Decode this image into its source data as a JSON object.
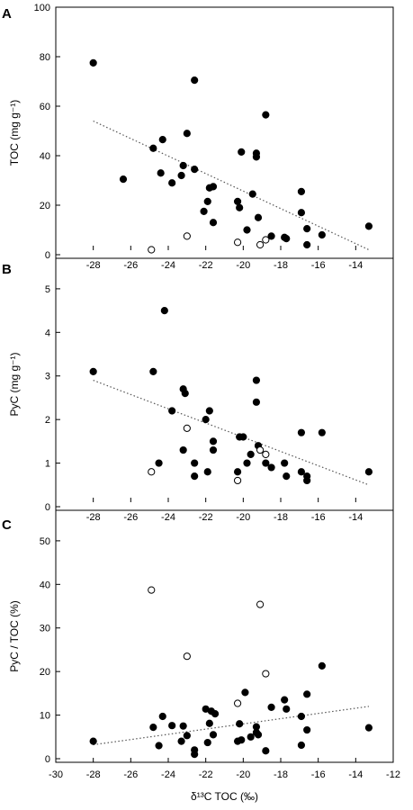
{
  "chart_data": [
    {
      "type": "scatter",
      "panel_label": "A",
      "ylabel": "TOC (mg g⁻¹)",
      "xlabel": "",
      "xlim": [
        -28,
        -13
      ],
      "ylim": [
        0,
        100
      ],
      "x_ticks": [
        -28,
        -26,
        -24,
        -22,
        -20,
        -18,
        -16,
        -14
      ],
      "y_ticks": [
        0,
        20,
        40,
        60,
        80,
        100
      ],
      "grid": false,
      "series": [
        {
          "marker": "filled-circle",
          "color": "#000000",
          "points": [
            [
              -28.0,
              77.5
            ],
            [
              -26.4,
              30.5
            ],
            [
              -24.8,
              43.0
            ],
            [
              -24.4,
              33.0
            ],
            [
              -24.3,
              46.5
            ],
            [
              -23.8,
              29.0
            ],
            [
              -23.3,
              32.0
            ],
            [
              -23.2,
              36.0
            ],
            [
              -23.0,
              49.0
            ],
            [
              -22.6,
              70.5
            ],
            [
              -22.6,
              34.5
            ],
            [
              -22.1,
              17.5
            ],
            [
              -21.9,
              21.5
            ],
            [
              -21.8,
              27.0
            ],
            [
              -21.6,
              27.5
            ],
            [
              -21.6,
              13.0
            ],
            [
              -20.3,
              21.5
            ],
            [
              -20.2,
              19.0
            ],
            [
              -20.1,
              41.5
            ],
            [
              -19.8,
              10.0
            ],
            [
              -19.5,
              24.5
            ],
            [
              -19.3,
              41.0
            ],
            [
              -19.3,
              39.5
            ],
            [
              -19.2,
              15.0
            ],
            [
              -18.8,
              56.5
            ],
            [
              -18.5,
              7.5
            ],
            [
              -17.8,
              7.0
            ],
            [
              -17.7,
              6.5
            ],
            [
              -16.9,
              25.5
            ],
            [
              -16.9,
              17.0
            ],
            [
              -16.6,
              10.5
            ],
            [
              -16.6,
              4.0
            ],
            [
              -15.8,
              8.0
            ],
            [
              -13.3,
              11.5
            ]
          ]
        },
        {
          "marker": "open-circle",
          "color": "#000000",
          "points": [
            [
              -24.9,
              2.0
            ],
            [
              -23.0,
              7.5
            ],
            [
              -20.3,
              5.0
            ],
            [
              -19.1,
              4.0
            ],
            [
              -18.8,
              6.0
            ]
          ]
        }
      ],
      "trendline": {
        "x": [
          -28.0,
          -13.3
        ],
        "y": [
          54.0,
          2.0
        ]
      }
    },
    {
      "type": "scatter",
      "panel_label": "B",
      "ylabel": "PyC (mg g⁻¹)",
      "xlabel": "",
      "xlim": [
        -28,
        -13
      ],
      "ylim": [
        0,
        5.7
      ],
      "x_ticks": [
        -28,
        -26,
        -24,
        -22,
        -20,
        -18,
        -16,
        -14
      ],
      "y_ticks": [
        0,
        1,
        2,
        3,
        4,
        5
      ],
      "grid": false,
      "series": [
        {
          "marker": "filled-circle",
          "color": "#000000",
          "points": [
            [
              -28.0,
              3.1
            ],
            [
              -24.8,
              3.1
            ],
            [
              -24.5,
              1.0
            ],
            [
              -24.2,
              4.5
            ],
            [
              -23.8,
              2.2
            ],
            [
              -23.2,
              2.7
            ],
            [
              -23.1,
              2.6
            ],
            [
              -23.2,
              1.3
            ],
            [
              -22.6,
              1.0
            ],
            [
              -22.6,
              0.7
            ],
            [
              -22.0,
              2.0
            ],
            [
              -21.8,
              2.2
            ],
            [
              -21.9,
              0.8
            ],
            [
              -21.6,
              1.5
            ],
            [
              -21.6,
              1.3
            ],
            [
              -20.3,
              0.8
            ],
            [
              -20.2,
              1.6
            ],
            [
              -20.0,
              1.6
            ],
            [
              -19.8,
              1.0
            ],
            [
              -19.6,
              1.2
            ],
            [
              -19.3,
              2.9
            ],
            [
              -19.3,
              2.4
            ],
            [
              -19.2,
              1.4
            ],
            [
              -18.8,
              1.0
            ],
            [
              -18.5,
              0.9
            ],
            [
              -17.8,
              1.0
            ],
            [
              -17.7,
              0.7
            ],
            [
              -16.9,
              1.7
            ],
            [
              -16.9,
              0.8
            ],
            [
              -16.6,
              0.7
            ],
            [
              -16.6,
              0.6
            ],
            [
              -15.8,
              1.7
            ],
            [
              -13.3,
              0.8
            ]
          ]
        },
        {
          "marker": "open-circle",
          "color": "#000000",
          "points": [
            [
              -24.9,
              0.8
            ],
            [
              -23.0,
              1.8
            ],
            [
              -20.3,
              0.6
            ],
            [
              -19.1,
              1.3
            ],
            [
              -18.8,
              1.2
            ]
          ]
        }
      ],
      "trendline": {
        "x": [
          -28.0,
          -13.3
        ],
        "y": [
          2.9,
          0.5
        ]
      }
    },
    {
      "type": "scatter",
      "panel_label": "C",
      "ylabel": "PyC / TOC (%)",
      "xlabel": "δ¹³C TOC (‰)",
      "xlim": [
        -30,
        -12
      ],
      "ylim": [
        0,
        57
      ],
      "x_ticks": [
        -30,
        -28,
        -26,
        -24,
        -22,
        -20,
        -18,
        -16,
        -14,
        -12
      ],
      "y_ticks": [
        0,
        10,
        20,
        30,
        40,
        50
      ],
      "grid": false,
      "series": [
        {
          "marker": "filled-circle",
          "color": "#000000",
          "points": [
            [
              -28.0,
              4.0
            ],
            [
              -24.8,
              7.2
            ],
            [
              -24.5,
              3.0
            ],
            [
              -24.3,
              9.7
            ],
            [
              -23.8,
              7.6
            ],
            [
              -23.3,
              4.0
            ],
            [
              -23.2,
              7.5
            ],
            [
              -23.0,
              5.3
            ],
            [
              -22.6,
              2.0
            ],
            [
              -22.6,
              1.0
            ],
            [
              -22.0,
              11.4
            ],
            [
              -21.9,
              3.7
            ],
            [
              -21.8,
              8.1
            ],
            [
              -21.7,
              10.9
            ],
            [
              -21.6,
              5.5
            ],
            [
              -21.5,
              10.3
            ],
            [
              -20.3,
              4.0
            ],
            [
              -20.2,
              8.0
            ],
            [
              -20.1,
              4.3
            ],
            [
              -19.9,
              15.2
            ],
            [
              -19.6,
              5.0
            ],
            [
              -19.3,
              7.3
            ],
            [
              -19.3,
              6.0
            ],
            [
              -19.2,
              5.5
            ],
            [
              -18.8,
              1.8
            ],
            [
              -18.5,
              11.8
            ],
            [
              -17.8,
              13.5
            ],
            [
              -17.7,
              11.4
            ],
            [
              -16.9,
              9.7
            ],
            [
              -16.9,
              3.1
            ],
            [
              -16.6,
              14.8
            ],
            [
              -16.6,
              6.6
            ],
            [
              -15.8,
              21.3
            ],
            [
              -13.3,
              7.1
            ]
          ]
        },
        {
          "marker": "open-circle",
          "color": "#000000",
          "points": [
            [
              -24.9,
              38.7
            ],
            [
              -23.0,
              23.5
            ],
            [
              -20.3,
              12.7
            ],
            [
              -19.1,
              35.4
            ],
            [
              -18.8,
              19.5
            ]
          ]
        }
      ],
      "trendline": {
        "x": [
          -28.0,
          -13.3
        ],
        "y": [
          3.2,
          12.0
        ]
      }
    }
  ]
}
